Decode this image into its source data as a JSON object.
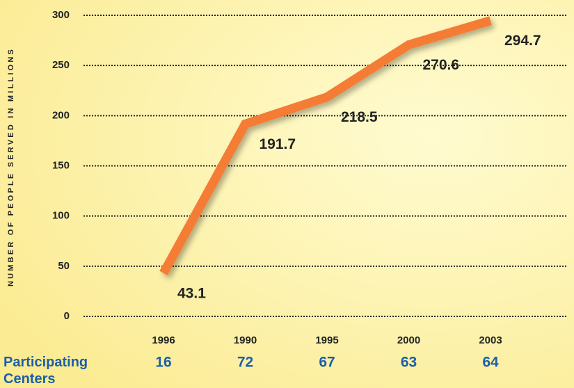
{
  "chart_data": {
    "type": "line",
    "y_label": "NUMBER OF PEOPLE SERVED IN MILLIONS",
    "categories": [
      "1996",
      "1990",
      "1995",
      "2000",
      "2003"
    ],
    "values": [
      43.1,
      191.7,
      218.5,
      270.6,
      294.7
    ],
    "color": "#f47b35",
    "ylim": [
      0,
      300
    ],
    "yticks": [
      0,
      50,
      100,
      150,
      200,
      250,
      300
    ],
    "grid": true,
    "participating_centers": {
      "label": "Participating Centers",
      "values": [
        16,
        72,
        67,
        63,
        64
      ]
    }
  }
}
